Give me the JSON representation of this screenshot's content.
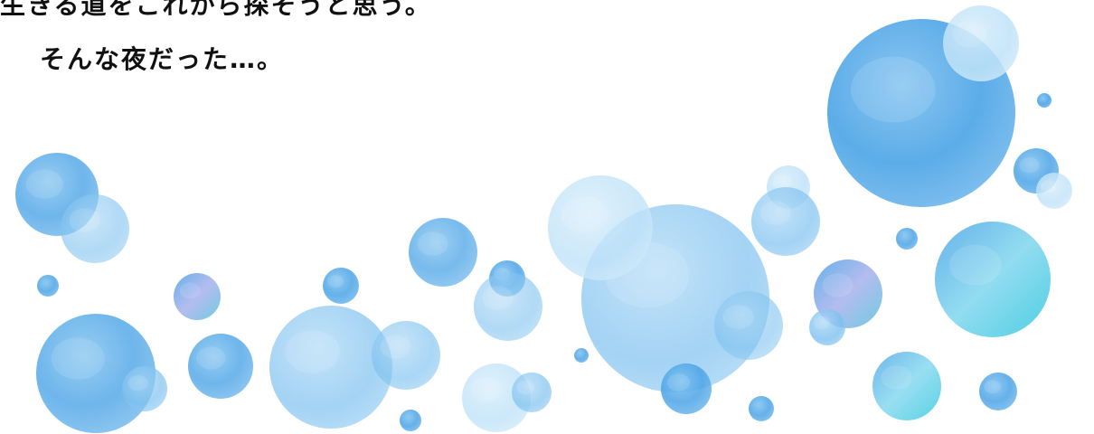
{
  "narration": {
    "line1": "生きる道をこれから探そうと思う。",
    "line2": "そんな夜だった…。"
  },
  "colors": {
    "background": "#ffffff",
    "text": "#111111",
    "bubble_deep": "#4aa3e6",
    "bubble_mid": "#7cc0ef",
    "bubble_light": "#bfe2f8",
    "bubble_cyan": "#5fd4e8",
    "bubble_violet": "#9fa8e8"
  }
}
